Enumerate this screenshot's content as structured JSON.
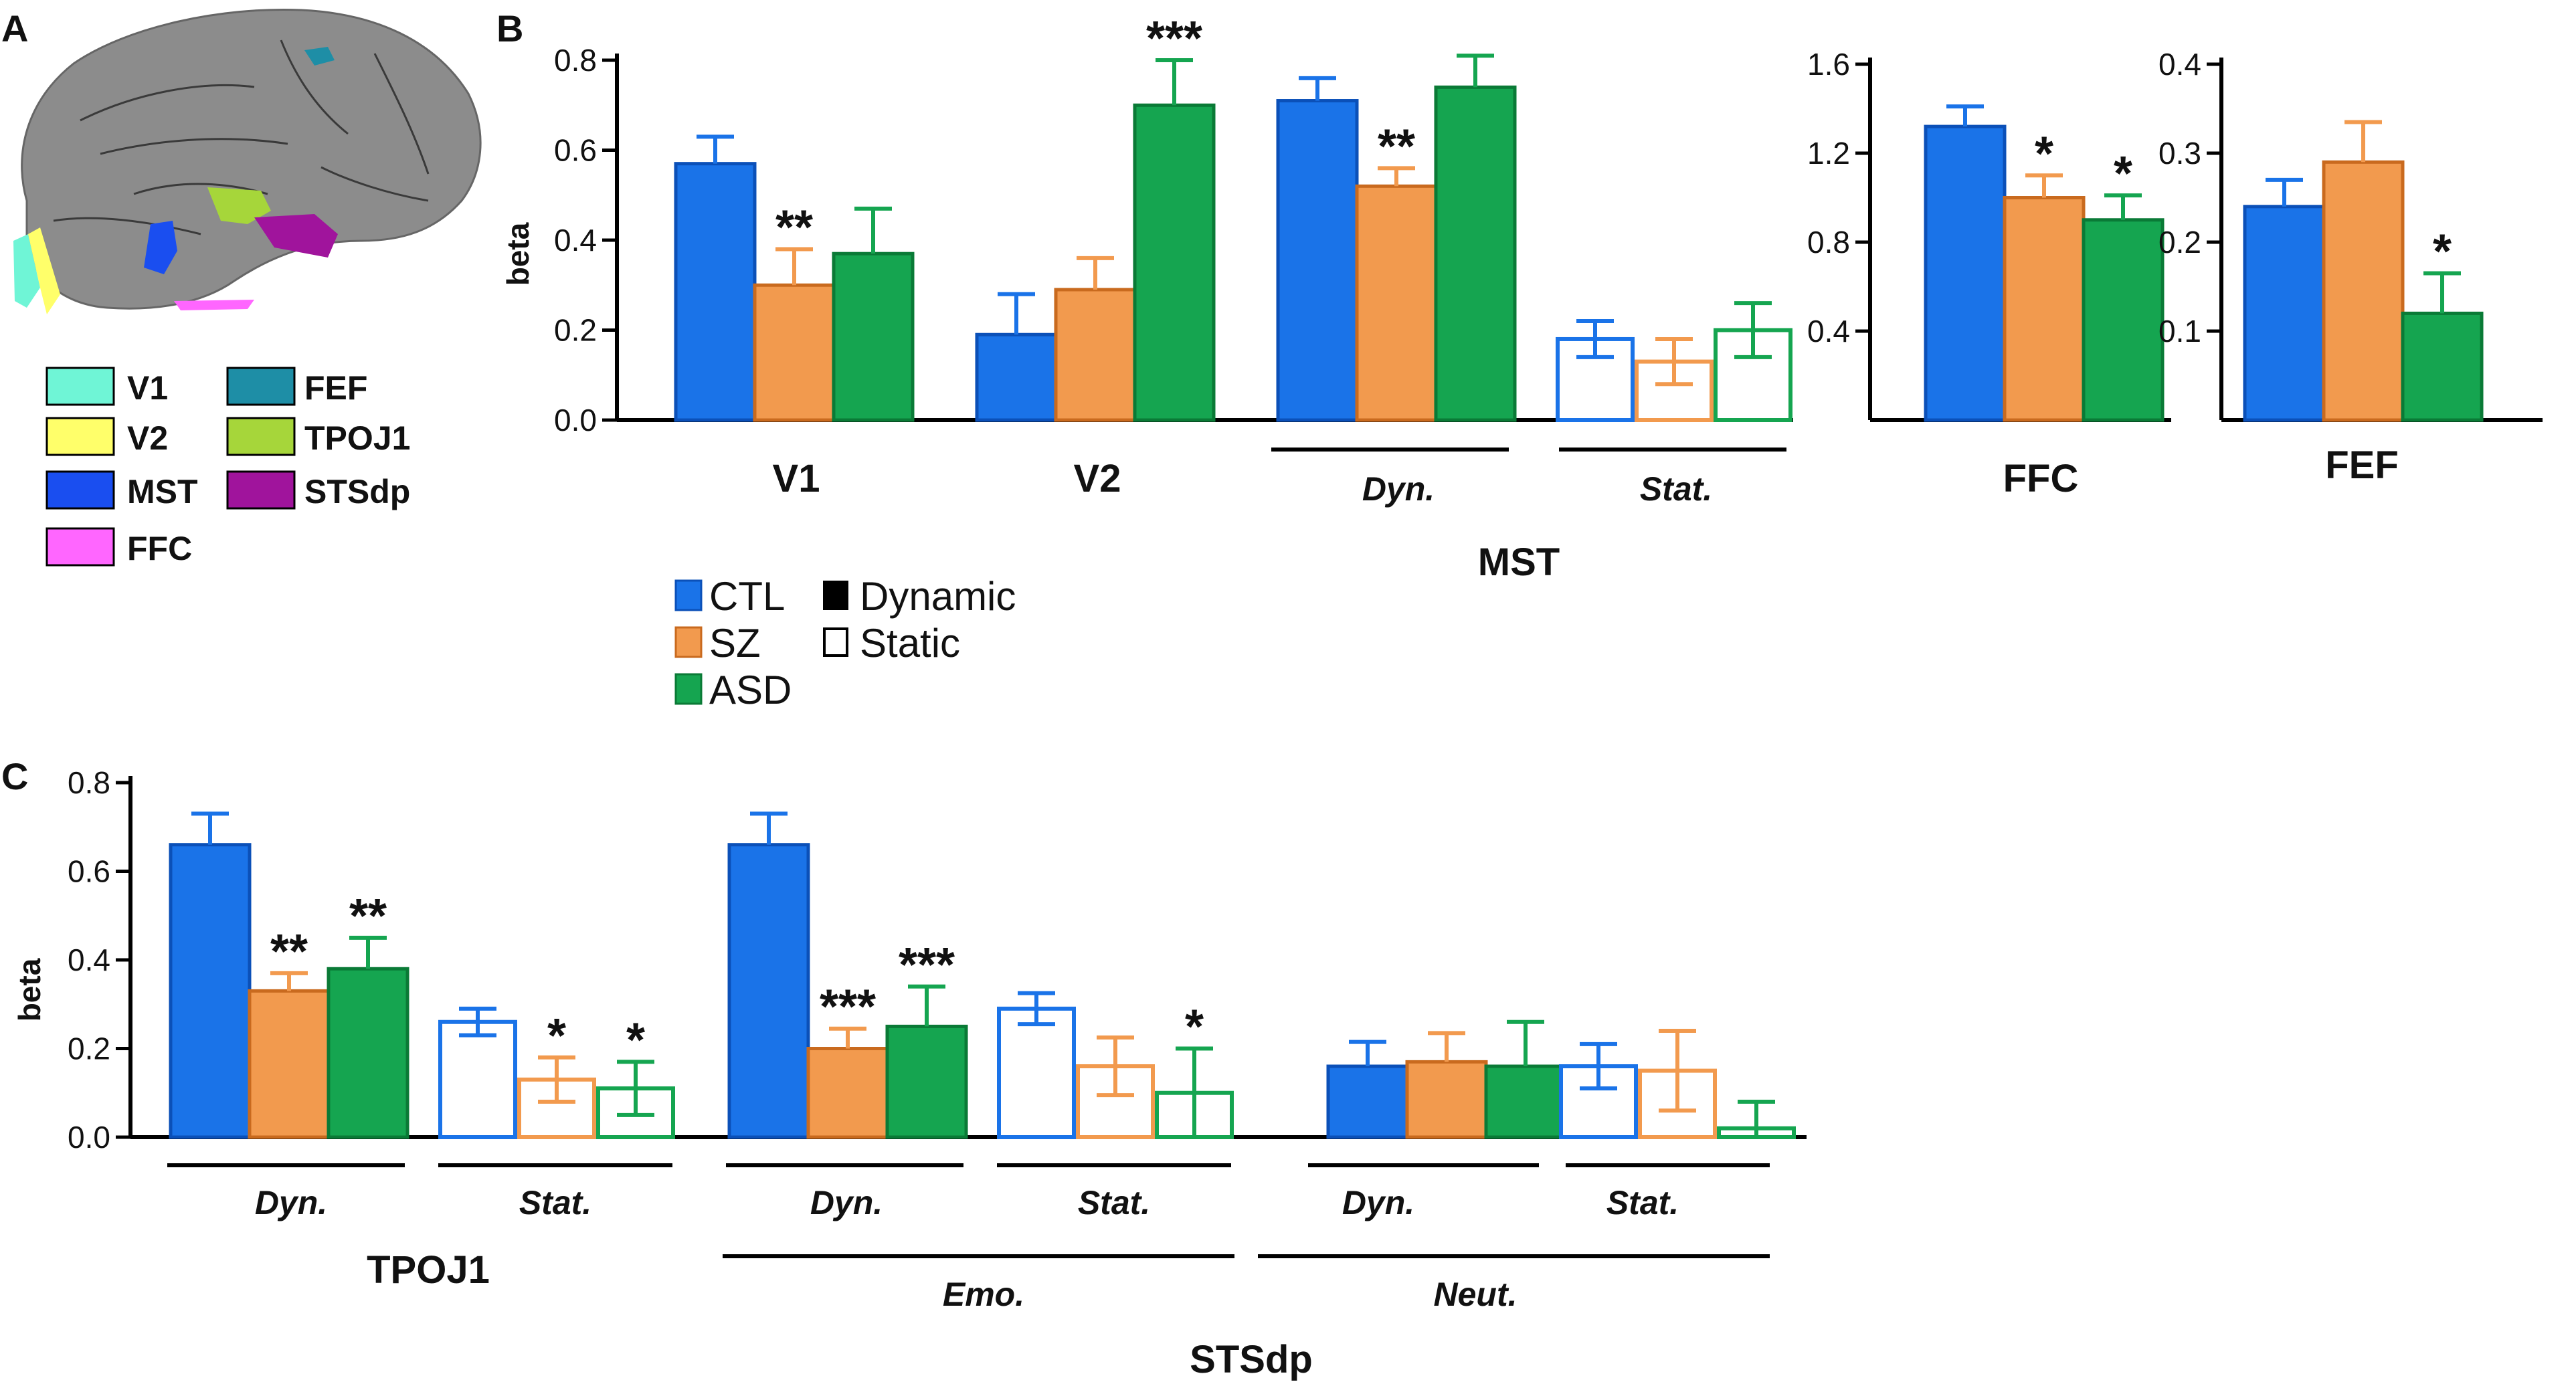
{
  "colors": {
    "CTL": "#1a73e8",
    "SZ": "#f29a4e",
    "ASD": "#15a550",
    "CTL_edge": "#0b50b8",
    "SZ_edge": "#c96a1e",
    "ASD_edge": "#0a7a36"
  },
  "panel_labels": {
    "a": "A",
    "b": "B",
    "c": "C"
  },
  "panel_a": {
    "legend": [
      {
        "label": "V1",
        "color": "#6ff5d6"
      },
      {
        "label": "FEF",
        "color": "#1e8ea6"
      },
      {
        "label": "V2",
        "color": "#ffff6a"
      },
      {
        "label": "TPOJ1",
        "color": "#a6d63a"
      },
      {
        "label": "MST",
        "color": "#1a4ef0"
      },
      {
        "label": "STSdp",
        "color": "#a0149c"
      },
      {
        "label": "FFC",
        "color": "#ff66ff"
      }
    ]
  },
  "legend": {
    "groups": [
      "CTL",
      "SZ",
      "ASD"
    ],
    "conditions": [
      "Dynamic",
      "Static"
    ]
  },
  "chart_data": [
    {
      "panel": "B",
      "type": "bar",
      "ylabel": "beta",
      "ylim": [
        0,
        0.8
      ],
      "yticks": [
        "0.0",
        "0.2",
        "0.4",
        "0.6",
        "0.8"
      ],
      "series": [
        "CTL",
        "SZ",
        "ASD"
      ],
      "groups": [
        {
          "label": "V1",
          "style": "filled",
          "values": [
            0.57,
            0.3,
            0.37
          ],
          "errors": [
            0.06,
            0.08,
            0.1
          ],
          "sig": [
            "",
            "**",
            ""
          ]
        },
        {
          "label": "V2",
          "style": "filled",
          "values": [
            0.19,
            0.29,
            0.7
          ],
          "errors": [
            0.09,
            0.07,
            0.1
          ],
          "sig": [
            "",
            "",
            "***"
          ]
        },
        {
          "label": "Dyn.",
          "style": "filled",
          "values": [
            0.71,
            0.52,
            0.74
          ],
          "errors": [
            0.05,
            0.04,
            0.07
          ],
          "sig": [
            "",
            "**",
            ""
          ]
        },
        {
          "label": "Stat.",
          "style": "open",
          "values": [
            0.18,
            0.13,
            0.2
          ],
          "errors": [
            0.04,
            0.05,
            0.06
          ],
          "sig": [
            "",
            "",
            ""
          ]
        }
      ],
      "subgroup_label": "MST"
    },
    {
      "panel": "B",
      "type": "bar",
      "ylim": [
        0,
        1.6
      ],
      "yticks": [
        "0.4",
        "0.8",
        "1.2",
        "1.6"
      ],
      "series": [
        "CTL",
        "SZ",
        "ASD"
      ],
      "groups": [
        {
          "label": "FFC",
          "style": "filled",
          "values": [
            1.32,
            1.0,
            0.9
          ],
          "errors": [
            0.09,
            0.1,
            0.11
          ],
          "sig": [
            "",
            "*",
            "*"
          ]
        }
      ]
    },
    {
      "panel": "B",
      "type": "bar",
      "ylim": [
        0,
        0.4
      ],
      "yticks": [
        "0.1",
        "0.2",
        "0.3",
        "0.4"
      ],
      "series": [
        "CTL",
        "SZ",
        "ASD"
      ],
      "groups": [
        {
          "label": "FEF",
          "style": "filled",
          "values": [
            0.24,
            0.29,
            0.12
          ],
          "errors": [
            0.03,
            0.045,
            0.045
          ],
          "sig": [
            "",
            "",
            "*"
          ]
        }
      ]
    },
    {
      "panel": "C",
      "type": "bar",
      "ylabel": "beta",
      "ylim": [
        0,
        0.8
      ],
      "yticks": [
        "0.0",
        "0.2",
        "0.4",
        "0.6",
        "0.8"
      ],
      "series": [
        "CTL",
        "SZ",
        "ASD"
      ],
      "groups": [
        {
          "label": "Dyn.",
          "style": "filled",
          "values": [
            0.66,
            0.33,
            0.38
          ],
          "errors": [
            0.07,
            0.04,
            0.07
          ],
          "sig": [
            "",
            "**",
            "**"
          ]
        },
        {
          "label": "Stat.",
          "style": "open",
          "values": [
            0.26,
            0.13,
            0.11
          ],
          "errors": [
            0.03,
            0.05,
            0.06
          ],
          "sig": [
            "",
            "*",
            "*"
          ]
        },
        {
          "label": "Dyn.",
          "style": "filled",
          "values": [
            0.66,
            0.2,
            0.25
          ],
          "errors": [
            0.07,
            0.045,
            0.09
          ],
          "sig": [
            "",
            "***",
            "***"
          ]
        },
        {
          "label": "Stat.",
          "style": "open",
          "values": [
            0.29,
            0.16,
            0.1
          ],
          "errors": [
            0.035,
            0.065,
            0.1
          ],
          "sig": [
            "",
            "",
            "*"
          ]
        },
        {
          "label": "Dyn.",
          "style": "filled",
          "values": [
            0.16,
            0.17,
            0.16
          ],
          "errors": [
            0.055,
            0.065,
            0.1
          ],
          "sig": [
            "",
            "",
            ""
          ]
        },
        {
          "label": "Stat.",
          "style": "open",
          "values": [
            0.16,
            0.15,
            0.02
          ],
          "errors": [
            0.05,
            0.09,
            0.06
          ],
          "sig": [
            "",
            "",
            ""
          ]
        }
      ],
      "region_labels": [
        "TPOJ1",
        "Emo.",
        "Neut.",
        "STSdp"
      ]
    }
  ]
}
